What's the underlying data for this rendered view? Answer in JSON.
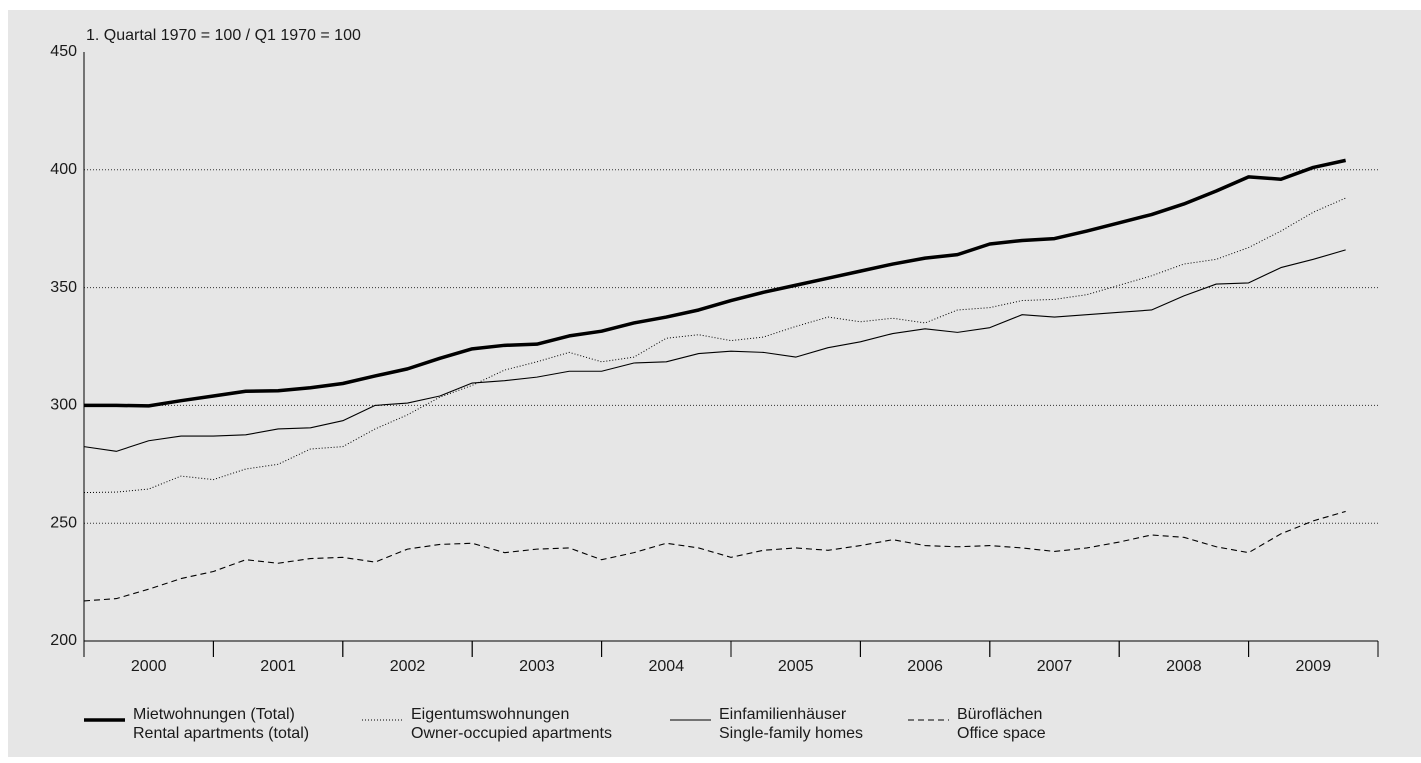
{
  "chart_data": {
    "type": "line",
    "y_label": "1. Quartal 1970 = 100 / Q1 1970 = 100",
    "x": [
      2000,
      2000.25,
      2000.5,
      2000.75,
      2001,
      2001.25,
      2001.5,
      2001.75,
      2002,
      2002.25,
      2002.5,
      2002.75,
      2003,
      2003.25,
      2003.5,
      2003.75,
      2004,
      2004.25,
      2004.5,
      2004.75,
      2005,
      2005.25,
      2005.5,
      2005.75,
      2006,
      2006.25,
      2006.5,
      2006.75,
      2007,
      2007.25,
      2007.5,
      2007.75,
      2008,
      2008.25,
      2008.5,
      2008.75,
      2009,
      2009.25,
      2009.5,
      2009.75
    ],
    "xlim": [
      2000,
      2010
    ],
    "xticks": [
      {
        "value": 2000.5,
        "label": "2000"
      },
      {
        "value": 2001.5,
        "label": "2001"
      },
      {
        "value": 2002.5,
        "label": "2002"
      },
      {
        "value": 2003.5,
        "label": "2003"
      },
      {
        "value": 2004.5,
        "label": "2004"
      },
      {
        "value": 2005.5,
        "label": "2005"
      },
      {
        "value": 2006.5,
        "label": "2006"
      },
      {
        "value": 2007.5,
        "label": "2007"
      },
      {
        "value": 2008.5,
        "label": "2008"
      },
      {
        "value": 2009.5,
        "label": "2009"
      }
    ],
    "ylim": [
      200,
      450
    ],
    "yticks": [
      200,
      250,
      300,
      350,
      400,
      450
    ],
    "grid": true,
    "series": [
      {
        "name": [
          "Mietwohnungen (Total)",
          "Rental apartments (total)"
        ],
        "color": "#000000",
        "line_width": 3.5,
        "line_style": "solid",
        "values": [
          300,
          300,
          299.8,
          302,
          304,
          306,
          306.2,
          307.5,
          309.3,
          312.5,
          315.5,
          320,
          324,
          325.5,
          326,
          329.5,
          331.5,
          335,
          337.5,
          340.5,
          344.5,
          348,
          351,
          354,
          357,
          360,
          362.5,
          364,
          368.5,
          370,
          370.8,
          374,
          377.5,
          381,
          385.5,
          391,
          397,
          396,
          401,
          404
        ]
      },
      {
        "name": [
          "Eigentumswohnungen",
          "Owner-occupied apartments"
        ],
        "color": "#000000",
        "line_width": 1,
        "line_style": "dotted",
        "values": [
          263,
          263.2,
          264.5,
          270,
          268.5,
          273,
          275,
          281.5,
          282.5,
          290,
          296,
          303.5,
          308.5,
          315,
          318.5,
          322.5,
          318.5,
          320.5,
          328.5,
          330,
          327.5,
          329,
          333.5,
          337.5,
          335.5,
          337,
          335,
          340.5,
          341.5,
          344.5,
          345,
          347,
          351,
          355,
          360,
          362,
          367,
          374,
          382,
          388
        ]
      },
      {
        "name": [
          "Einfamilienhäuser",
          "Single-family homes"
        ],
        "color": "#000000",
        "line_width": 1.1,
        "line_style": "solid",
        "values": [
          282.5,
          280.5,
          285,
          287,
          287,
          287.5,
          290,
          290.5,
          293.5,
          300,
          301,
          304,
          309.5,
          310.5,
          312,
          314.5,
          314.5,
          318,
          318.5,
          322,
          323,
          322.5,
          320.5,
          324.5,
          327,
          330.5,
          332.5,
          331,
          333,
          338.5,
          337.5,
          338.5,
          339.5,
          340.5,
          346.5,
          351.5,
          352,
          358.5,
          362,
          366
        ]
      },
      {
        "name": [
          "Büroflächen",
          "Office space"
        ],
        "color": "#000000",
        "line_width": 1.1,
        "line_style": "dashed",
        "values": [
          217,
          218,
          222,
          226.5,
          229.5,
          234.5,
          233,
          235,
          235.5,
          233.5,
          239,
          241,
          241.5,
          237.5,
          239,
          239.5,
          234.5,
          237.5,
          241.5,
          239.5,
          235.5,
          238.5,
          239.5,
          238.5,
          240.5,
          243,
          240.5,
          240,
          240.5,
          239.5,
          238,
          239.5,
          242,
          245,
          244,
          240,
          237.5,
          245.5,
          251,
          255
        ]
      }
    ]
  }
}
